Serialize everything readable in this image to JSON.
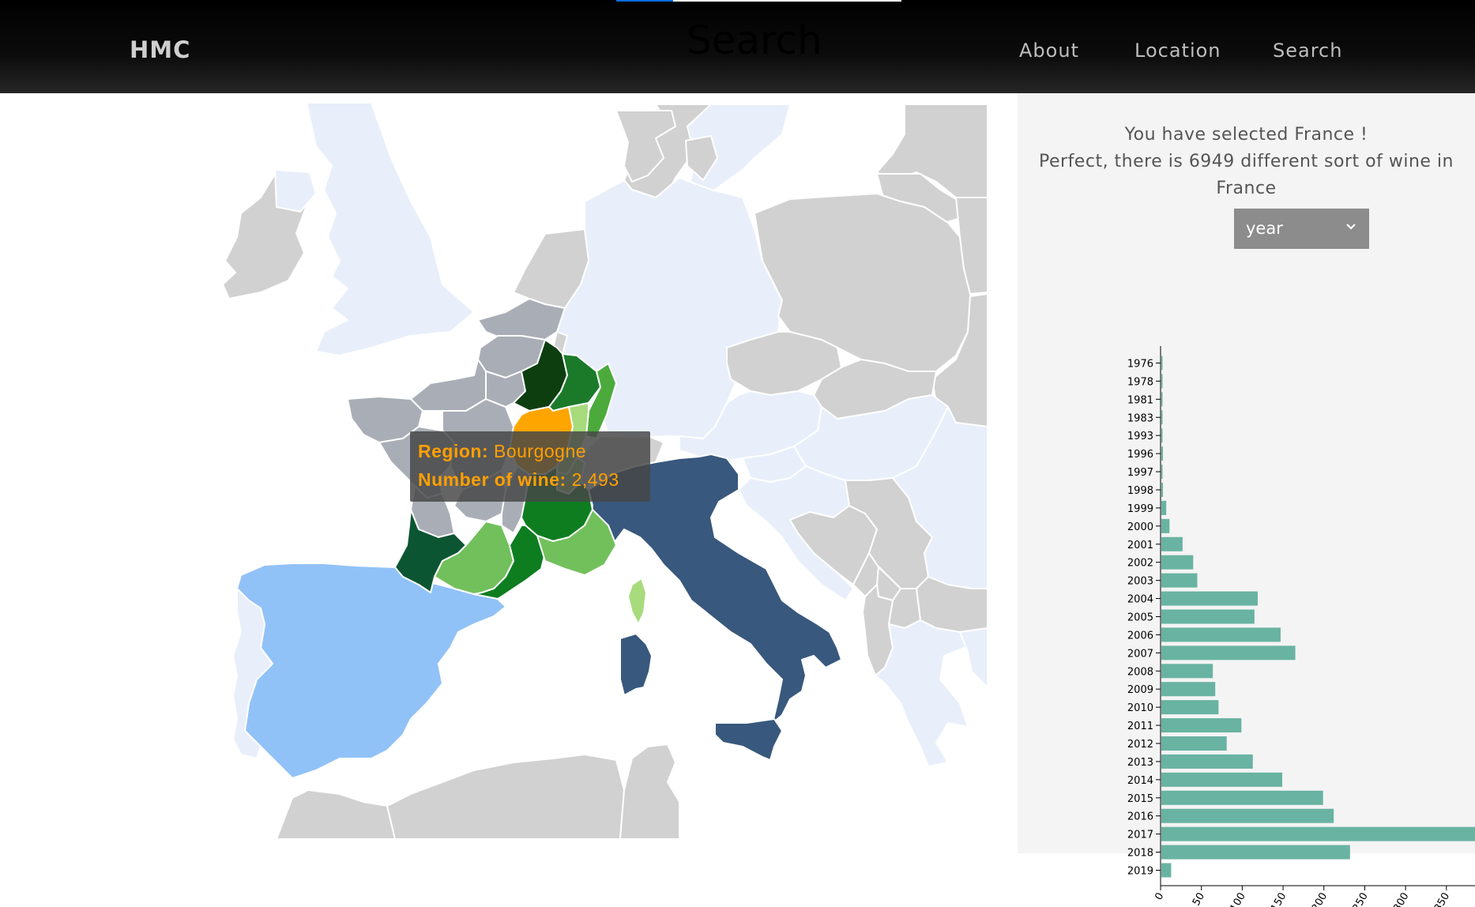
{
  "nav": {
    "brand": "HMC",
    "heading": "Search",
    "links": [
      "About",
      "Location",
      "Search"
    ],
    "progress": 0.2
  },
  "tooltip": {
    "region_key": "Region:",
    "region_value": "Bourgogne",
    "count_key": "Number of wine:",
    "count_value": "2,493"
  },
  "panel": {
    "line1": "You have selected France !",
    "line2": "Perfect, there is 6949 different sort of wine in",
    "line3": "France",
    "select_value": "year"
  },
  "colors": {
    "highlight": "#ffa500",
    "bar": "#69b3a2",
    "italy": "#38587d",
    "spain": "#91c2f7",
    "neighbors": "#e8effa",
    "other_countries": "#d1d1d1",
    "french_regions": "#a9aeb6"
  },
  "icons": {
    "select_arrow": "chevron-down-icon"
  },
  "chart_data": {
    "type": "bar",
    "orientation": "horizontal",
    "categories": [
      "1976",
      "1978",
      "1981",
      "1983",
      "1993",
      "1996",
      "1997",
      "1998",
      "1999",
      "2000",
      "2001",
      "2002",
      "2003",
      "2004",
      "2005",
      "2006",
      "2007",
      "2008",
      "2009",
      "2010",
      "2011",
      "2012",
      "2013",
      "2014",
      "2015",
      "2016",
      "2017",
      "2018",
      "2019"
    ],
    "values": [
      1,
      1,
      1,
      1,
      1,
      2,
      1,
      2,
      6,
      10,
      26,
      39,
      44,
      118,
      114,
      146,
      164,
      63,
      66,
      70,
      98,
      80,
      112,
      148,
      198,
      211,
      385,
      231,
      12
    ],
    "x_ticks": [
      0,
      50,
      100,
      150,
      200,
      250,
      300,
      350
    ],
    "xlim": [
      0,
      385
    ]
  }
}
